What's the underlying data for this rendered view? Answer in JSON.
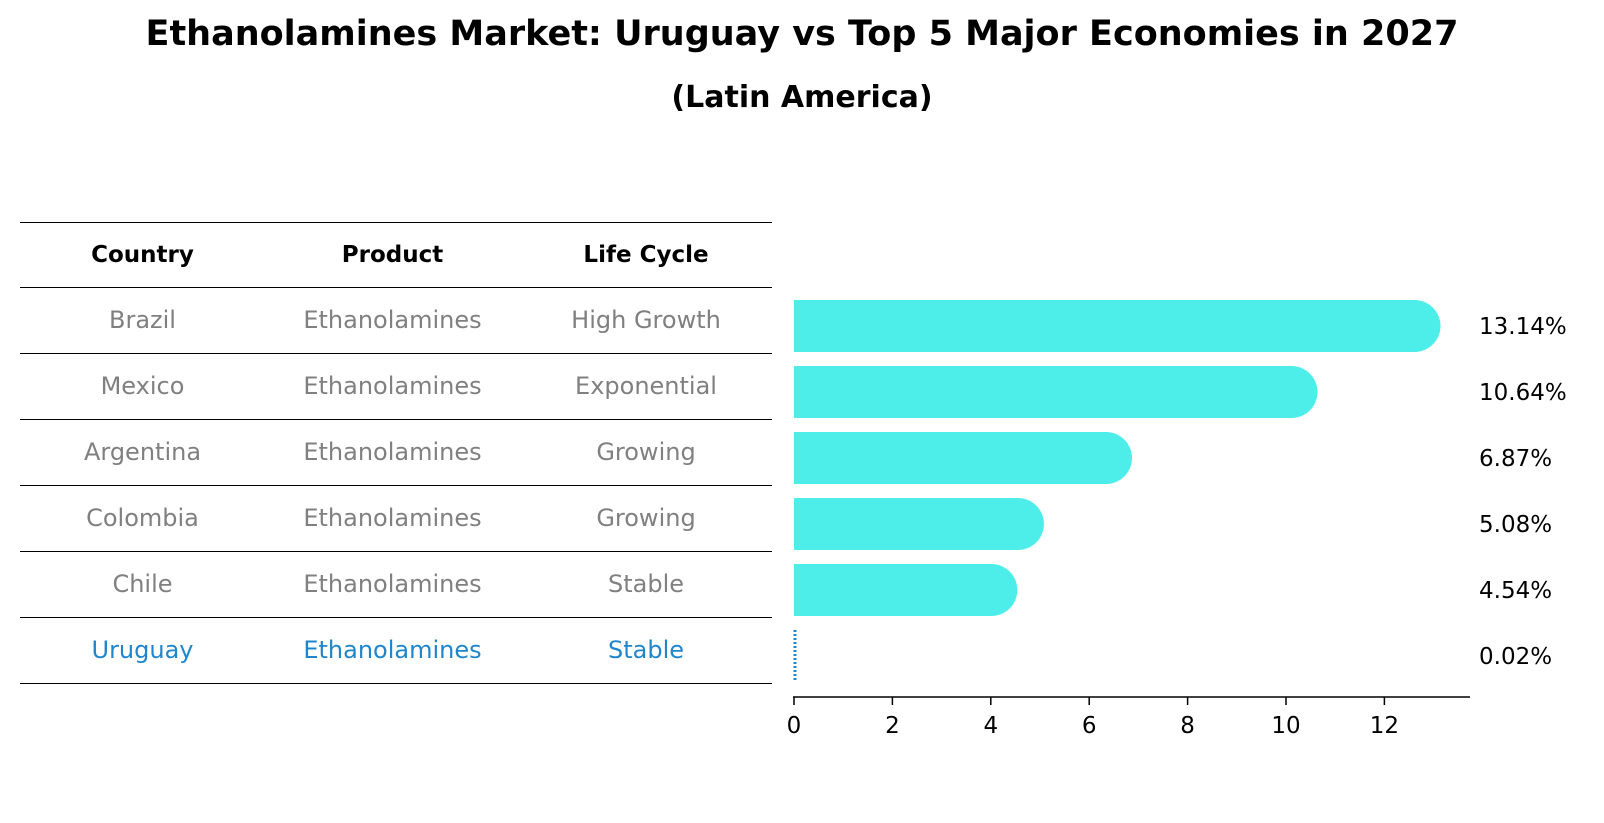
{
  "title": "Ethanolamines Market: Uruguay vs Top 5 Major Economies in 2027",
  "subtitle": "(Latin America)",
  "table": {
    "headers": [
      "Country",
      "Product",
      "Life Cycle"
    ],
    "rows": [
      [
        "Brazil",
        "Ethanolamines",
        "High Growth"
      ],
      [
        "Mexico",
        "Ethanolamines",
        "Exponential"
      ],
      [
        "Argentina",
        "Ethanolamines",
        "Growing"
      ],
      [
        "Colombia",
        "Ethanolamines",
        "Growing"
      ],
      [
        "Chile",
        "Ethanolamines",
        "Stable"
      ],
      [
        "Uruguay",
        "Ethanolamines",
        "Stable"
      ]
    ],
    "highlight_row": 5
  },
  "chart_data": {
    "type": "bar",
    "orientation": "horizontal",
    "categories": [
      "Brazil",
      "Mexico",
      "Argentina",
      "Colombia",
      "Chile",
      "Uruguay"
    ],
    "values": [
      13.14,
      10.64,
      6.87,
      5.08,
      4.54,
      0.02
    ],
    "value_labels": [
      "13.14%",
      "10.64%",
      "6.87%",
      "5.08%",
      "4.54%",
      "0.02%"
    ],
    "xticks": [
      0,
      2,
      4,
      6,
      8,
      10,
      12
    ],
    "xlim": [
      0,
      13.8
    ],
    "grid": false,
    "colors": {
      "bar": "#4deeea",
      "highlight": "#1f86cc"
    }
  }
}
